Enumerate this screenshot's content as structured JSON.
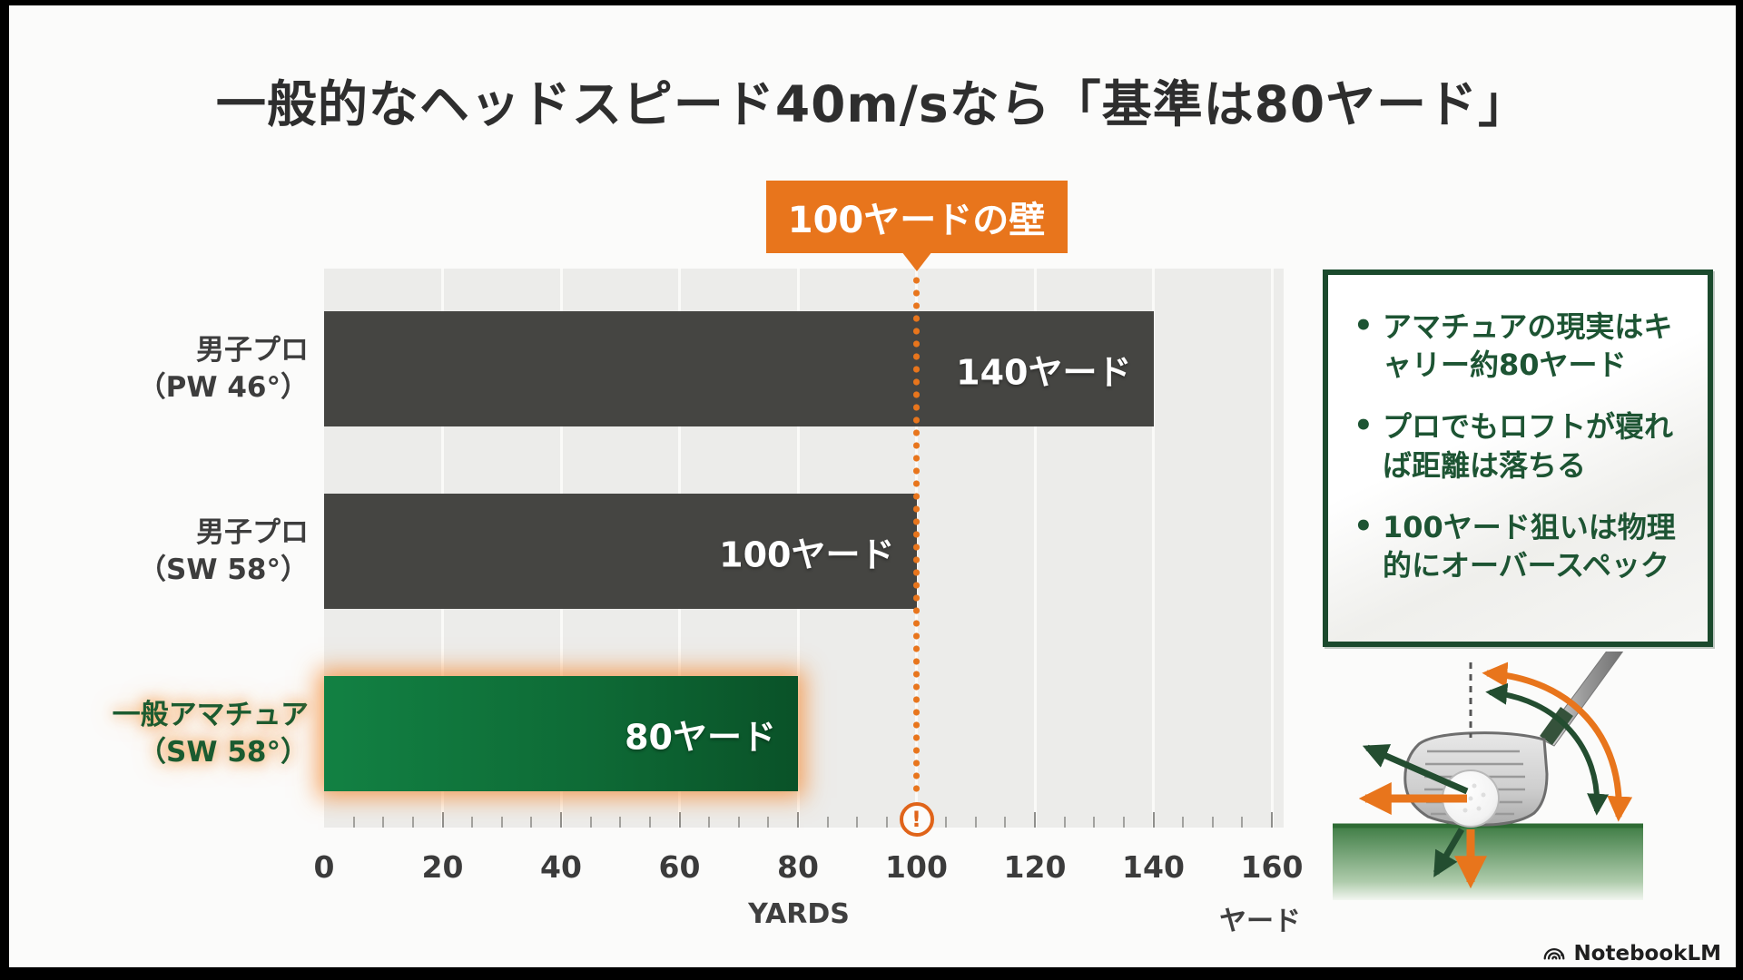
{
  "title": "一般的なヘッドスピード40m/sなら「基準は80ヤード」",
  "callout": {
    "label": "100ヤードの壁"
  },
  "chart_data": {
    "type": "bar",
    "orientation": "horizontal",
    "title": "一般的なヘッドスピード40m/sなら「基準は80ヤード」",
    "categories": [
      [
        "男子プロ",
        "（PW 46°）"
      ],
      [
        "男子プロ",
        "（SW 58°）"
      ],
      [
        "一般アマチュア",
        "（SW 58°）"
      ]
    ],
    "values": [
      140,
      100,
      80
    ],
    "value_labels": [
      "140ヤード",
      "100ヤード",
      "80ヤード"
    ],
    "highlight_index": 2,
    "xlim": [
      0,
      160
    ],
    "x_major": 20,
    "x_minor": 5,
    "x_tick_labels": [
      "0",
      "20",
      "40",
      "60",
      "80",
      "100",
      "120",
      "140",
      "160"
    ],
    "xlabel_en": "YARDS",
    "xlabel_ja": "ヤード",
    "grid": true,
    "annotation": {
      "label": "100ヤードの壁",
      "value": 100,
      "marker": "!"
    },
    "colors": {
      "bar": "#454542",
      "highlight_green_start": "#128143",
      "highlight_green_end": "#0A5228",
      "accent_orange": "#E8751C",
      "plot_background": "#ECECEA",
      "note_green": "#1D5433"
    }
  },
  "notes": {
    "items": [
      "アマチュアの現実はキャリー約80ヤード",
      "プロでもロフトが寝れば距離は落ちる",
      "100ヤード狙いは物理的にオーバースペック"
    ]
  },
  "branding": {
    "logo_text": "NotebookLM"
  }
}
